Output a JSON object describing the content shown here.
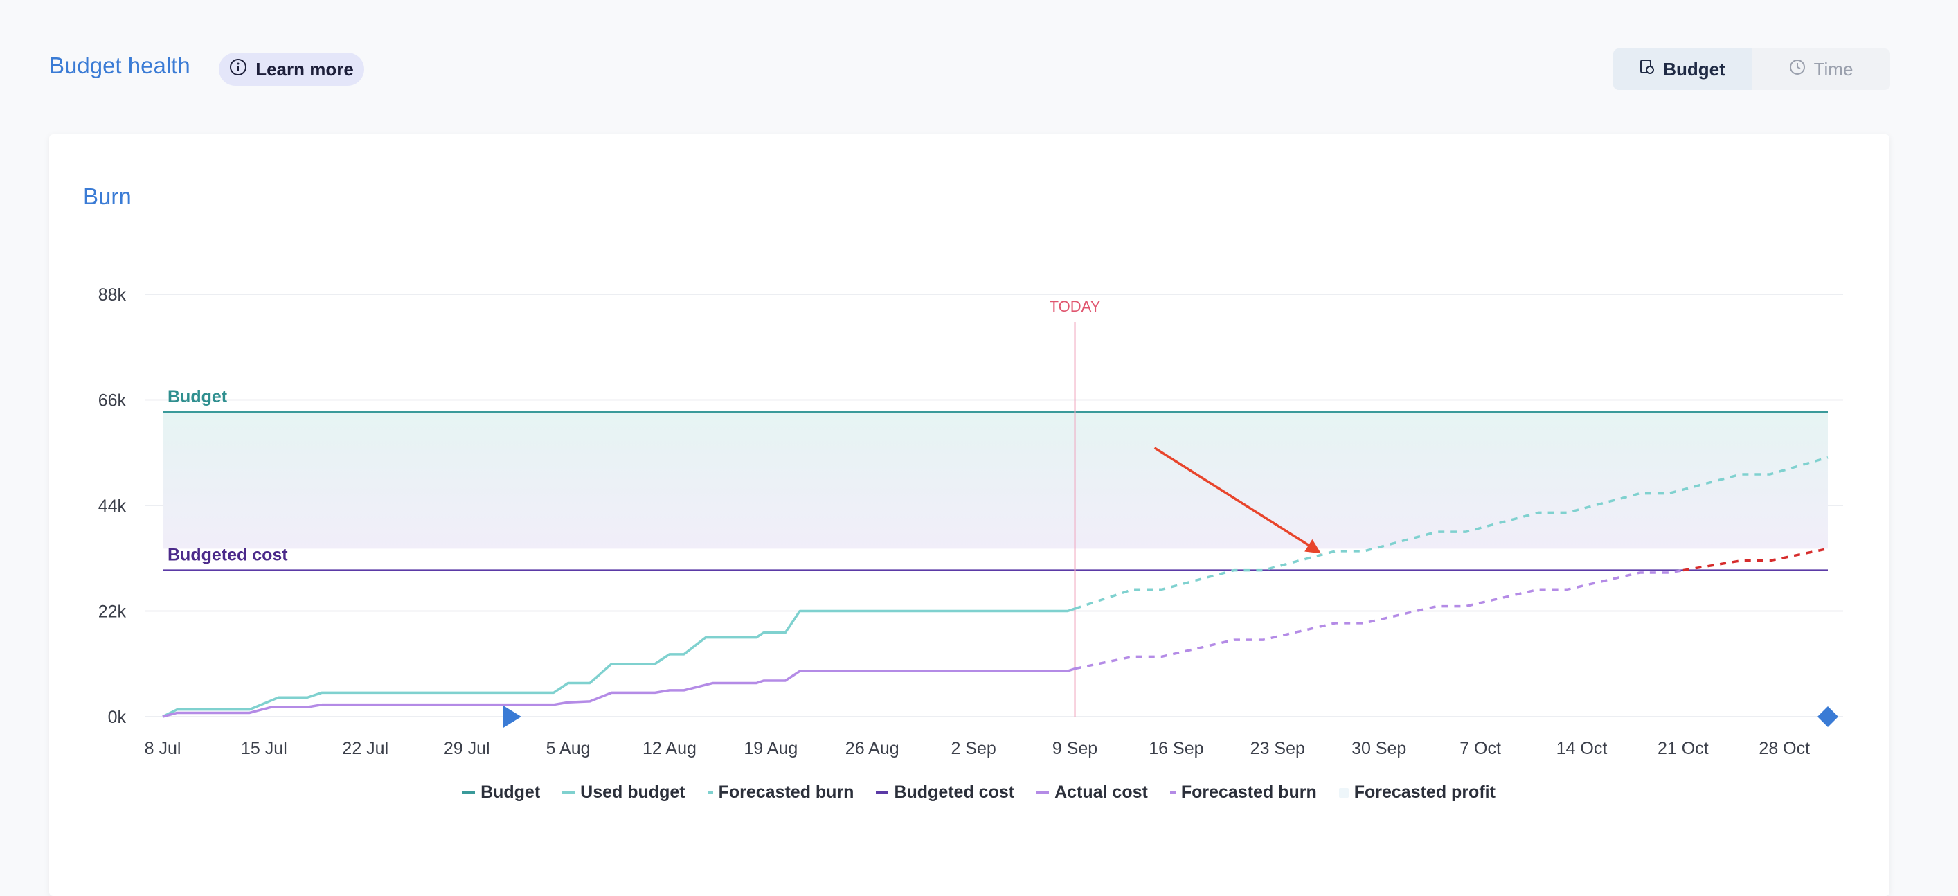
{
  "header": {
    "title": "Budget health",
    "learn_more_label": "Learn more",
    "toggle": [
      {
        "label": "Budget",
        "icon": "budget-icon",
        "active": true
      },
      {
        "label": "Time",
        "icon": "clock-icon",
        "active": false
      }
    ]
  },
  "card": {
    "title": "Burn"
  },
  "chart_data": {
    "type": "line",
    "x_tick_labels": [
      "8 Jul",
      "15 Jul",
      "22 Jul",
      "29 Jul",
      "5 Aug",
      "12 Aug",
      "19 Aug",
      "26 Aug",
      "2 Sep",
      "9 Sep",
      "16 Sep",
      "23 Sep",
      "30 Sep",
      "7 Oct",
      "14 Oct",
      "21 Oct",
      "28 Oct"
    ],
    "y_ticks": [
      0,
      22000,
      44000,
      66000,
      88000
    ],
    "y_tick_labels": [
      "0k",
      "22k",
      "44k",
      "66k",
      "88k"
    ],
    "ylim": [
      0,
      88000
    ],
    "x_range_days": [
      0,
      115
    ],
    "today": {
      "label": "TODAY",
      "day": 63
    },
    "budget": {
      "label": "Budget",
      "value": 63500
    },
    "budgeted_cost": {
      "label": "Budgeted cost",
      "value": 30500
    },
    "forecasted_profit_band": [
      35000,
      63500
    ],
    "series": [
      {
        "name": "Used budget",
        "style": "solid",
        "color": "#7fd1cf",
        "points": [
          [
            0,
            0
          ],
          [
            1,
            1500
          ],
          [
            6,
            1500
          ],
          [
            8,
            4000
          ],
          [
            10,
            4000
          ],
          [
            11,
            5000
          ],
          [
            27,
            5000
          ],
          [
            28,
            7000
          ],
          [
            29.5,
            7000
          ],
          [
            31,
            11000
          ],
          [
            34,
            11000
          ],
          [
            35,
            13000
          ],
          [
            36,
            13000
          ],
          [
            37.5,
            16500
          ],
          [
            41,
            16500
          ],
          [
            41.5,
            17500
          ],
          [
            43,
            17500
          ],
          [
            44,
            22000
          ],
          [
            62.5,
            22000
          ],
          [
            63,
            22500
          ]
        ]
      },
      {
        "name": "Forecasted burn",
        "style": "dashed",
        "color": "#7fd1cf",
        "points": [
          [
            63,
            22500
          ],
          [
            67,
            26500
          ],
          [
            69,
            26500
          ],
          [
            74,
            30500
          ],
          [
            76,
            30500
          ],
          [
            81,
            34500
          ],
          [
            83,
            34500
          ],
          [
            88,
            38500
          ],
          [
            90,
            38500
          ],
          [
            95,
            42500
          ],
          [
            97,
            42500
          ],
          [
            102,
            46500
          ],
          [
            104,
            46500
          ],
          [
            109,
            50500
          ],
          [
            111,
            50500
          ],
          [
            115,
            54000
          ]
        ]
      },
      {
        "name": "Actual cost",
        "style": "solid",
        "color": "#b48be6",
        "points": [
          [
            0,
            0
          ],
          [
            1,
            800
          ],
          [
            6,
            800
          ],
          [
            7.5,
            2000
          ],
          [
            10,
            2000
          ],
          [
            11,
            2500
          ],
          [
            27,
            2500
          ],
          [
            28,
            3000
          ],
          [
            29.5,
            3200
          ],
          [
            31,
            5000
          ],
          [
            34,
            5000
          ],
          [
            35,
            5500
          ],
          [
            36,
            5500
          ],
          [
            38,
            7000
          ],
          [
            41,
            7000
          ],
          [
            41.5,
            7500
          ],
          [
            43,
            7500
          ],
          [
            44,
            9500
          ],
          [
            62.5,
            9500
          ],
          [
            63,
            10000
          ]
        ]
      },
      {
        "name": "Forecasted burn",
        "style": "dashed",
        "color": "#b48be6",
        "over_budget_color": "#d62c2c",
        "points": [
          [
            63,
            10000
          ],
          [
            67,
            12500
          ],
          [
            69,
            12500
          ],
          [
            74,
            16000
          ],
          [
            76,
            16000
          ],
          [
            81,
            19500
          ],
          [
            83,
            19500
          ],
          [
            88,
            23000
          ],
          [
            90,
            23000
          ],
          [
            95,
            26500
          ],
          [
            97,
            26500
          ],
          [
            102,
            30000
          ],
          [
            104,
            30000
          ],
          [
            109,
            32500
          ],
          [
            111,
            32500
          ],
          [
            115,
            35000
          ]
        ]
      }
    ],
    "markers": [
      {
        "name": "start-marker",
        "shape": "triangle",
        "day": 24,
        "value": 0,
        "color": "#3a7bd5"
      },
      {
        "name": "end-marker",
        "shape": "diamond",
        "day": 115,
        "value": 0,
        "color": "#3a7bd5"
      }
    ],
    "annotation_arrow": {
      "from": [
        68.5,
        56000
      ],
      "to": [
        80,
        34000
      ],
      "color": "#e8452c"
    },
    "grid": true,
    "legend_position": "bottom",
    "legend": [
      {
        "label": "Budget",
        "color": "#3a9a9a",
        "kind": "line"
      },
      {
        "label": "Used budget",
        "color": "#7fd1cf",
        "kind": "line"
      },
      {
        "label": "Forecasted burn",
        "color": "#7fd1cf",
        "kind": "dash"
      },
      {
        "label": "Budgeted cost",
        "color": "#5b3aa6",
        "kind": "line"
      },
      {
        "label": "Actual cost",
        "color": "#b48be6",
        "kind": "line"
      },
      {
        "label": "Forecasted burn",
        "color": "#b48be6",
        "kind": "dash"
      },
      {
        "label": "Forecasted profit",
        "color": "#eef6fa",
        "kind": "block"
      }
    ]
  }
}
